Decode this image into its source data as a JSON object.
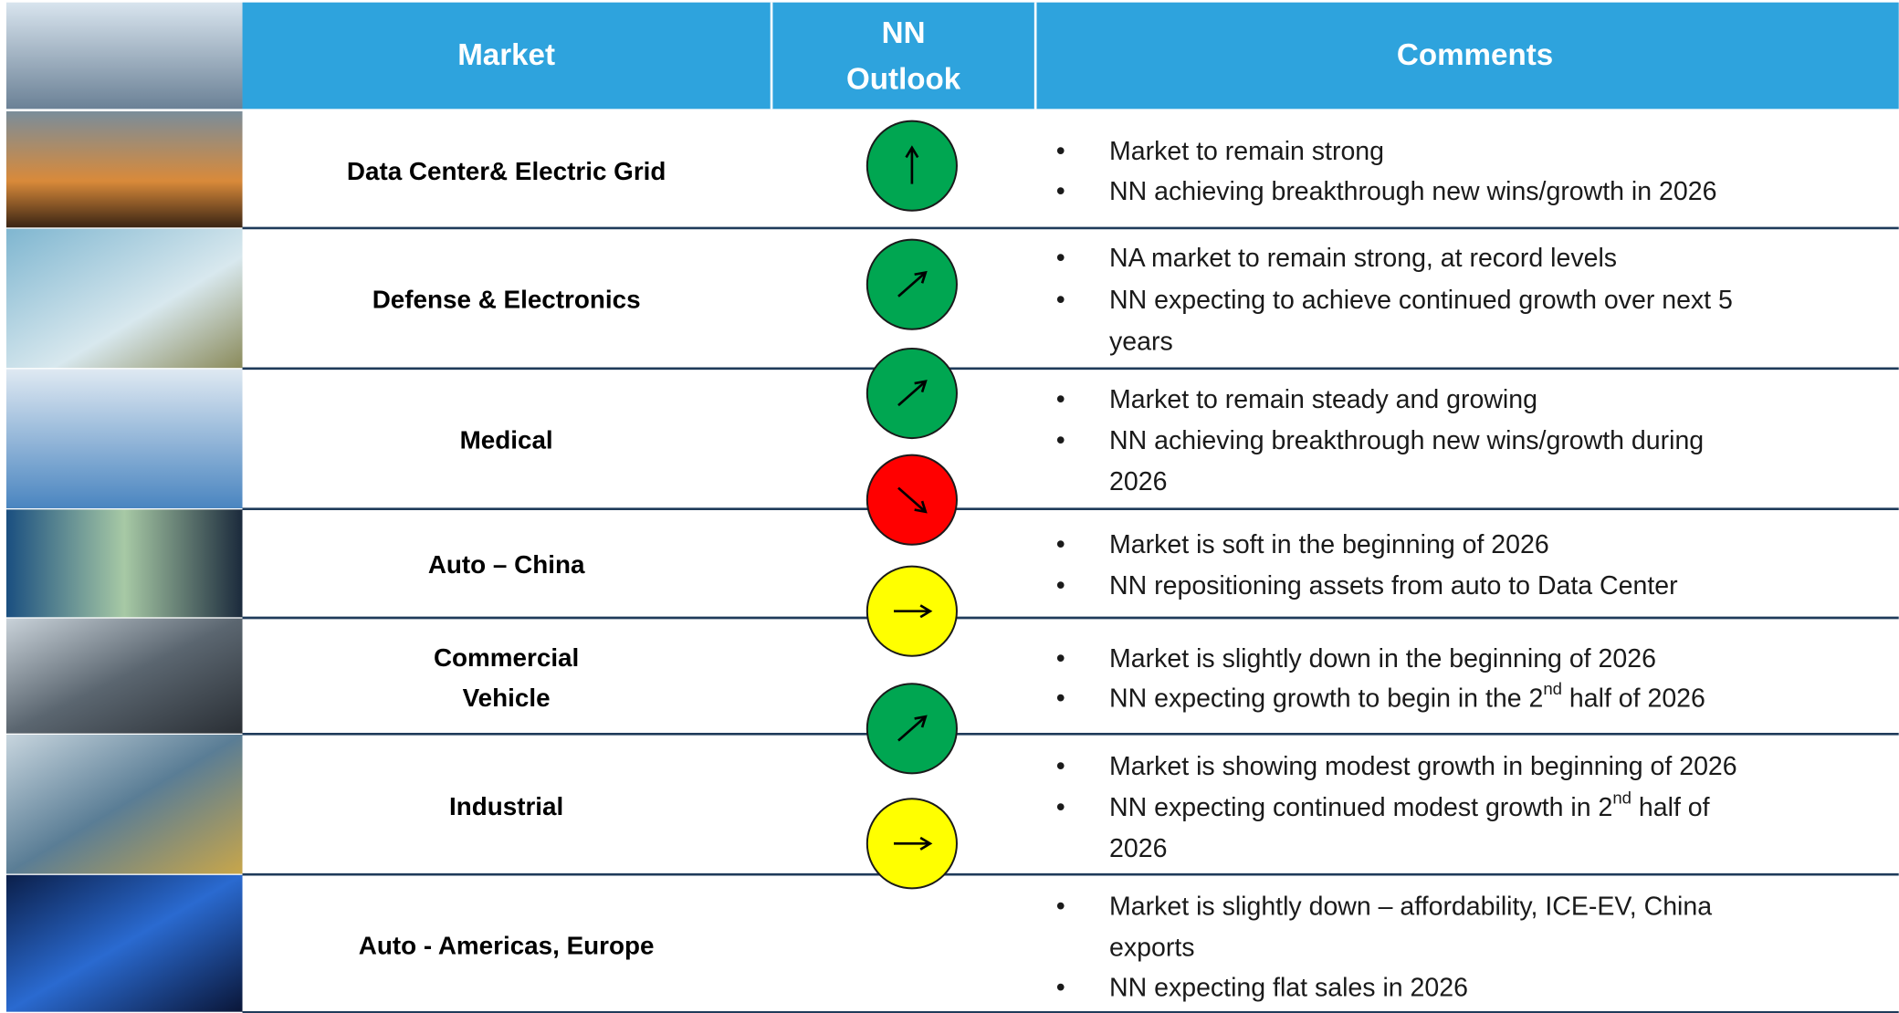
{
  "header": {
    "market": "Market",
    "outlook": [
      "NN",
      "Outlook"
    ],
    "comments": "Comments"
  },
  "rows": [
    {
      "market": [
        "Data Center& Electric Grid"
      ],
      "outlook": {
        "direction": "up",
        "color": "#00a651"
      },
      "comments": [
        [
          [
            "Market to remain strong"
          ]
        ],
        [
          [
            "NN achieving breakthrough new wins/growth in 2026"
          ]
        ]
      ]
    },
    {
      "market": [
        "Defense & Electronics"
      ],
      "outlook": {
        "direction": "up-right",
        "color": "#00a651"
      },
      "comments": [
        [
          [
            "NA market to remain strong, at record levels"
          ]
        ],
        [
          [
            "NN expecting to achieve continued growth over next 5"
          ],
          [
            "years"
          ]
        ]
      ]
    },
    {
      "market": [
        "Medical"
      ],
      "outlook": {
        "direction": "up-right",
        "color": "#00a651"
      },
      "comments": [
        [
          [
            "Market to remain steady and growing"
          ]
        ],
        [
          [
            "NN achieving breakthrough new wins/growth during"
          ],
          [
            "2026"
          ]
        ]
      ]
    },
    {
      "market": [
        "Auto – China"
      ],
      "outlook": {
        "direction": "down-right",
        "color": "#ff0000"
      },
      "comments": [
        [
          [
            "Market is soft in the beginning of 2026"
          ]
        ],
        [
          [
            "NN repositioning assets from auto to Data Center"
          ]
        ]
      ]
    },
    {
      "market": [
        "Commercial",
        "Vehicle"
      ],
      "outlook": {
        "direction": "right",
        "color": "#ffff00"
      },
      "comments": [
        [
          [
            "Market is slightly down in the beginning of 2026"
          ]
        ],
        [
          [
            "NN expecting growth to begin in the 2",
            "nd",
            " half of 2026"
          ]
        ]
      ]
    },
    {
      "market": [
        "Industrial"
      ],
      "outlook": {
        "direction": "up-right",
        "color": "#00a651"
      },
      "comments": [
        [
          [
            "Market is showing modest growth in beginning of 2026"
          ]
        ],
        [
          [
            "NN expecting continued modest growth in 2",
            "nd",
            " half of"
          ],
          [
            "2026"
          ]
        ]
      ]
    },
    {
      "market": [
        "Auto - Americas, Europe"
      ],
      "outlook": {
        "direction": "right",
        "color": "#ffff00"
      },
      "comments": [
        [
          [
            "Market is slightly down – affordability, ICE-EV, China"
          ],
          [
            "exports"
          ]
        ],
        [
          [
            "NN expecting flat sales in 2026"
          ]
        ]
      ]
    }
  ]
}
